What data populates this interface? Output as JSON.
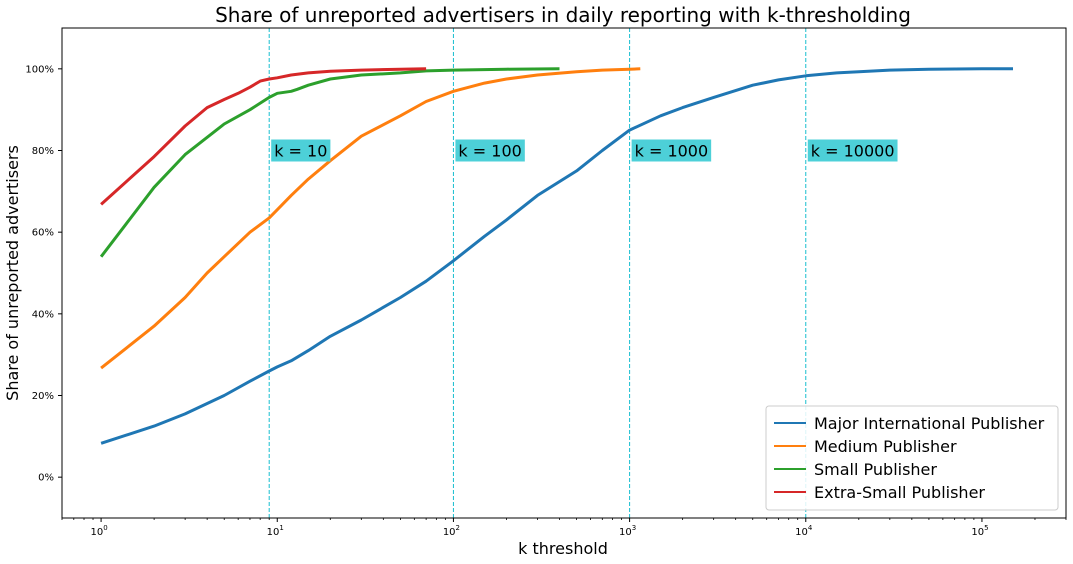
{
  "chart_data": {
    "type": "line",
    "title": "Share of unreported advertisers in daily reporting with k-thresholding",
    "xlabel": "k threshold",
    "ylabel": "Share of unreported advertisers",
    "x_scale": "log",
    "xlim": [
      0.6,
      300000
    ],
    "ylim": [
      -0.1,
      1.1
    ],
    "x_ticks": [
      {
        "value": 1,
        "base": "10",
        "exp": "0"
      },
      {
        "value": 10,
        "base": "10",
        "exp": "1"
      },
      {
        "value": 100,
        "base": "10",
        "exp": "2"
      },
      {
        "value": 1000,
        "base": "10",
        "exp": "3"
      },
      {
        "value": 10000,
        "base": "10",
        "exp": "4"
      },
      {
        "value": 100000,
        "base": "10",
        "exp": "5"
      }
    ],
    "y_ticks": [
      {
        "value": 0,
        "label": "0%"
      },
      {
        "value": 0.2,
        "label": "20%"
      },
      {
        "value": 0.4,
        "label": "40%"
      },
      {
        "value": 0.6,
        "label": "60%"
      },
      {
        "value": 0.8,
        "label": "80%"
      },
      {
        "value": 1.0,
        "label": "100%"
      }
    ],
    "legend_position": "bottom-right",
    "grid": false,
    "vlines": [
      {
        "x": 9,
        "color": "#17becf"
      },
      {
        "x": 100,
        "color": "#17becf"
      },
      {
        "x": 1000,
        "color": "#17becf"
      },
      {
        "x": 10000,
        "color": "#17becf"
      }
    ],
    "annotations": [
      {
        "text": "k = 10",
        "x": 9,
        "y": 0.8
      },
      {
        "text": "k = 100",
        "x": 100,
        "y": 0.8
      },
      {
        "text": "k = 1000",
        "x": 1000,
        "y": 0.8
      },
      {
        "text": "k = 10000",
        "x": 10000,
        "y": 0.8
      }
    ],
    "annotation_bg": "#4dd0d8",
    "series": [
      {
        "name": "Major International Publisher",
        "color": "#1f77b4",
        "x": [
          1,
          2,
          3,
          5,
          7,
          9,
          10,
          12,
          15,
          20,
          30,
          50,
          70,
          100,
          150,
          200,
          300,
          500,
          700,
          1000,
          1500,
          2000,
          3000,
          5000,
          7000,
          10000,
          15000,
          20000,
          30000,
          50000,
          100000,
          150000
        ],
        "y": [
          0.083,
          0.125,
          0.155,
          0.2,
          0.235,
          0.26,
          0.27,
          0.285,
          0.31,
          0.345,
          0.385,
          0.44,
          0.48,
          0.53,
          0.59,
          0.63,
          0.69,
          0.75,
          0.8,
          0.85,
          0.885,
          0.905,
          0.93,
          0.96,
          0.973,
          0.983,
          0.99,
          0.993,
          0.997,
          0.999,
          1.0,
          1.0
        ]
      },
      {
        "name": "Medium Publisher",
        "color": "#ff7f0e",
        "x": [
          1,
          2,
          3,
          4,
          5,
          7,
          9,
          10,
          12,
          15,
          20,
          30,
          50,
          70,
          100,
          150,
          200,
          300,
          500,
          700,
          1000,
          1150
        ],
        "y": [
          0.267,
          0.37,
          0.44,
          0.5,
          0.54,
          0.6,
          0.635,
          0.655,
          0.69,
          0.73,
          0.775,
          0.835,
          0.885,
          0.92,
          0.945,
          0.965,
          0.975,
          0.985,
          0.993,
          0.997,
          0.999,
          1.0
        ]
      },
      {
        "name": "Small Publisher",
        "color": "#2ca02c",
        "x": [
          1,
          2,
          3,
          5,
          7,
          9,
          10,
          12,
          13,
          15,
          20,
          30,
          50,
          70,
          100,
          200,
          400
        ],
        "y": [
          0.54,
          0.71,
          0.79,
          0.865,
          0.9,
          0.93,
          0.94,
          0.945,
          0.95,
          0.96,
          0.975,
          0.985,
          0.99,
          0.995,
          0.997,
          0.999,
          1.0
        ]
      },
      {
        "name": "Extra-Small Publisher",
        "color": "#d62728",
        "x": [
          1,
          2,
          3,
          4,
          5,
          6,
          7,
          8,
          9,
          10,
          12,
          15,
          20,
          30,
          50,
          70
        ],
        "y": [
          0.668,
          0.785,
          0.86,
          0.905,
          0.925,
          0.94,
          0.955,
          0.97,
          0.975,
          0.978,
          0.985,
          0.99,
          0.994,
          0.997,
          0.999,
          1.0
        ]
      }
    ]
  }
}
